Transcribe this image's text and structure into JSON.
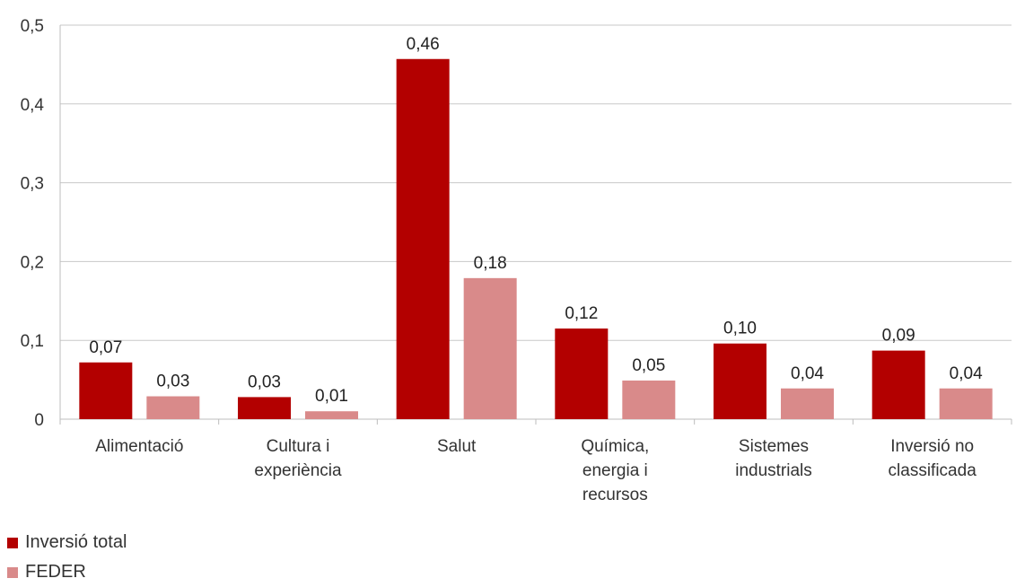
{
  "chart_data": {
    "type": "bar",
    "categories": [
      [
        "Alimentació"
      ],
      [
        "Cultura i",
        "experiència"
      ],
      [
        "Salut"
      ],
      [
        "Química,",
        "energia i",
        "recursos"
      ],
      [
        "Sistemes",
        "industrials"
      ],
      [
        "Inversió no",
        "classificada"
      ]
    ],
    "series": [
      {
        "name": "Inversió total",
        "color": "#b30000",
        "values": [
          0.072,
          0.028,
          0.457,
          0.115,
          0.096,
          0.087
        ],
        "labels": [
          "0,07",
          "0,03",
          "0,46",
          "0,12",
          "0,10",
          "0,09"
        ]
      },
      {
        "name": "FEDER",
        "color": "#d98a8a",
        "values": [
          0.029,
          0.01,
          0.179,
          0.049,
          0.039,
          0.039
        ],
        "labels": [
          "0,03",
          "0,01",
          "0,18",
          "0,05",
          "0,04",
          "0,04"
        ]
      }
    ],
    "ylim": [
      0,
      0.5
    ],
    "yticks": [
      0,
      0.1,
      0.2,
      0.3,
      0.4,
      0.5
    ],
    "ytick_labels": [
      "0",
      "0,1",
      "0,2",
      "0,3",
      "0,4",
      "0,5"
    ],
    "grid": true,
    "legend": "bottom-left"
  }
}
